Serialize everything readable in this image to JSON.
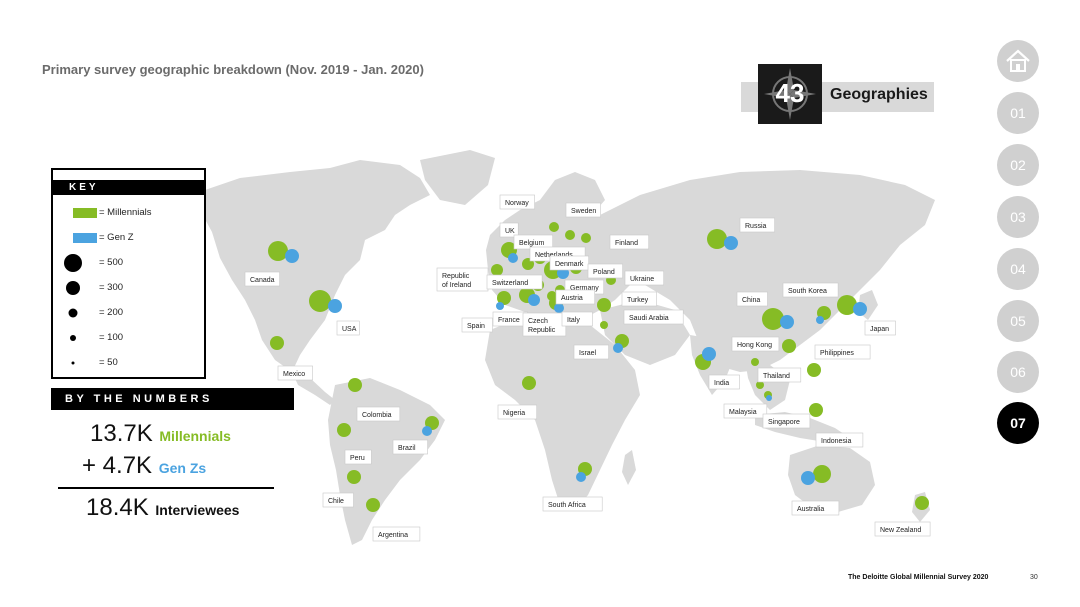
{
  "title": "Primary survey geographic breakdown (Nov. 2019 - Jan. 2020)",
  "geographies": {
    "count": "43",
    "label": "Geographies"
  },
  "key": {
    "heading": "KEY",
    "rows": [
      {
        "label": "= Millennials"
      },
      {
        "label": "= Gen Z"
      },
      {
        "label": "= 500"
      },
      {
        "label": "= 300"
      },
      {
        "label": "= 200"
      },
      {
        "label": "= 100"
      },
      {
        "label": "= 50"
      }
    ]
  },
  "numbers": {
    "heading": "BY THE NUMBERS",
    "millennials_value": "13.7K",
    "millennials_label": "Millennials",
    "genz_value": "+ 4.7K",
    "genz_label": "Gen Zs",
    "total_value": "18.4K",
    "total_label": "Interviewees"
  },
  "countries": [
    "Canada",
    "USA",
    "Mexico",
    "Colombia",
    "Peru",
    "Brazil",
    "Chile",
    "Argentina",
    "Norway",
    "Sweden",
    "Finland",
    "UK",
    "Belgium",
    "Netherlands",
    "Denmark",
    "Republic of Ireland",
    "Switzerland",
    "Poland",
    "Ukraine",
    "Germany",
    "Austria",
    "Turkey",
    "Spain",
    "France",
    "Czech Republic",
    "Italy",
    "Saudi Arabia",
    "Israel",
    "Nigeria",
    "South Africa",
    "Russia",
    "China",
    "South Korea",
    "Japan",
    "Hong Kong",
    "Philippines",
    "India",
    "Thailand",
    "Malaysia",
    "Singapore",
    "Indonesia",
    "Australia",
    "New Zealand"
  ],
  "nav": [
    "01",
    "02",
    "03",
    "04",
    "05",
    "06",
    "07"
  ],
  "nav_active": "07",
  "footer": "The Deloitte Global Millennial Survey 2020",
  "page_number": "30",
  "colors": {
    "millennials": "#86bc25",
    "genz": "#4ba3e0",
    "land": "#d9d9d9"
  }
}
